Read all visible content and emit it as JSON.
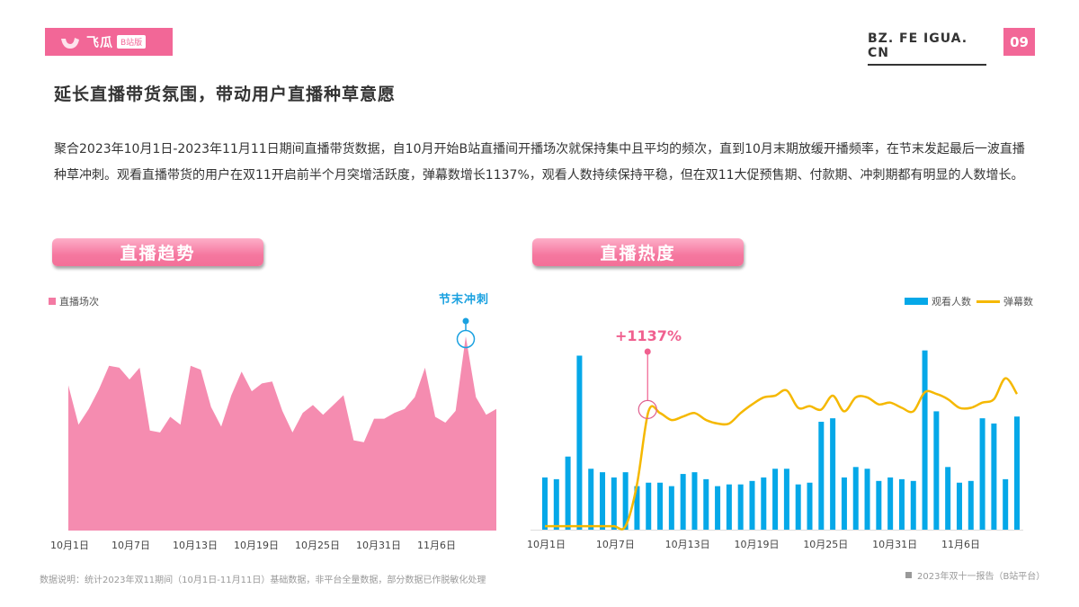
{
  "header": {
    "logo_brand": "飞瓜",
    "logo_tag": "B站版",
    "site": "BZ. FE IGUA. CN",
    "page_number": "09",
    "brand_color": "#f26797"
  },
  "title": "延长直播带货氛围，带动用户直播种草意愿",
  "description": "聚合2023年10月1日-2023年11月11日期间直播带货数据，自10月开始B站直播间开播场次就保持集中且平均的频次，直到10月末期放缓开播频率，在节末发起最后一波直播种草冲刺。观看直播带货的用户在双11开启前半个月突增活跃度，弹幕数增长1137%，观看人数持续保持平稳，但在双11大促预售期、付款期、冲刺期都有明显的人数增长。",
  "sections": {
    "left_title": "直播趋势",
    "right_title": "直播热度"
  },
  "annotations": {
    "left": "节末冲刺",
    "right": "+1137%"
  },
  "footer": {
    "note": "数据说明：统计2023年双11期间（10月1日-11月11日）基础数据，非平台全量数据，部分数据已作脱敏化处理",
    "source": "2023年双十一报告（B站平台）"
  },
  "chart_data": [
    {
      "type": "area",
      "title": "直播趋势",
      "legend": [
        "直播场次"
      ],
      "color": "#f58cb0",
      "x_ticks": [
        "10月1日",
        "10月7日",
        "10月13日",
        "10月19日",
        "10月25日",
        "10月31日",
        "11月6日"
      ],
      "xlabel": "",
      "ylabel": "",
      "grid": false,
      "legend_position": "top-left",
      "series": [
        {
          "name": "直播场次",
          "values": [
            74,
            54,
            62,
            72,
            84,
            83,
            77,
            83,
            51,
            50,
            58,
            54,
            84,
            82,
            63,
            53,
            69,
            81,
            71,
            75,
            76,
            61,
            50,
            60,
            64,
            59,
            64,
            69,
            46,
            45,
            57,
            57,
            60,
            62,
            68,
            83,
            58,
            55,
            61,
            99,
            68,
            59,
            62
          ]
        }
      ],
      "annotation": {
        "label": "节末冲刺",
        "index": 39
      }
    },
    {
      "type": "bar+line",
      "title": "直播热度",
      "legend": [
        "观看人数",
        "弹幕数"
      ],
      "legend_position": "top-right",
      "x_ticks": [
        "10月1日",
        "10月7日",
        "10月13日",
        "10月19日",
        "10月25日",
        "10月31日",
        "11月6日"
      ],
      "grid": false,
      "series": [
        {
          "name": "观看人数",
          "type": "bar",
          "color": "#05a8e8",
          "values": [
            30,
            29,
            42,
            100,
            35,
            33,
            30,
            33,
            25,
            27,
            27,
            25,
            32,
            33,
            29,
            25,
            26,
            26,
            28,
            30,
            35,
            35,
            26,
            27,
            62,
            64,
            30,
            36,
            35,
            28,
            30,
            29,
            28,
            103,
            68,
            36,
            27,
            28,
            64,
            61,
            29,
            65
          ]
        },
        {
          "name": "弹幕数",
          "type": "line",
          "color": "#f5b800",
          "values": [
            2,
            2,
            2,
            2,
            2,
            2,
            2,
            2,
            26,
            68,
            67,
            63,
            65,
            67,
            63,
            61,
            61,
            67,
            72,
            76,
            77,
            80,
            70,
            71,
            69,
            77,
            68,
            76,
            76,
            72,
            73,
            70,
            68,
            79,
            78,
            75,
            70,
            70,
            73,
            75,
            87,
            78
          ]
        }
      ],
      "annotation": {
        "label": "+1137%",
        "index": 9
      }
    }
  ]
}
